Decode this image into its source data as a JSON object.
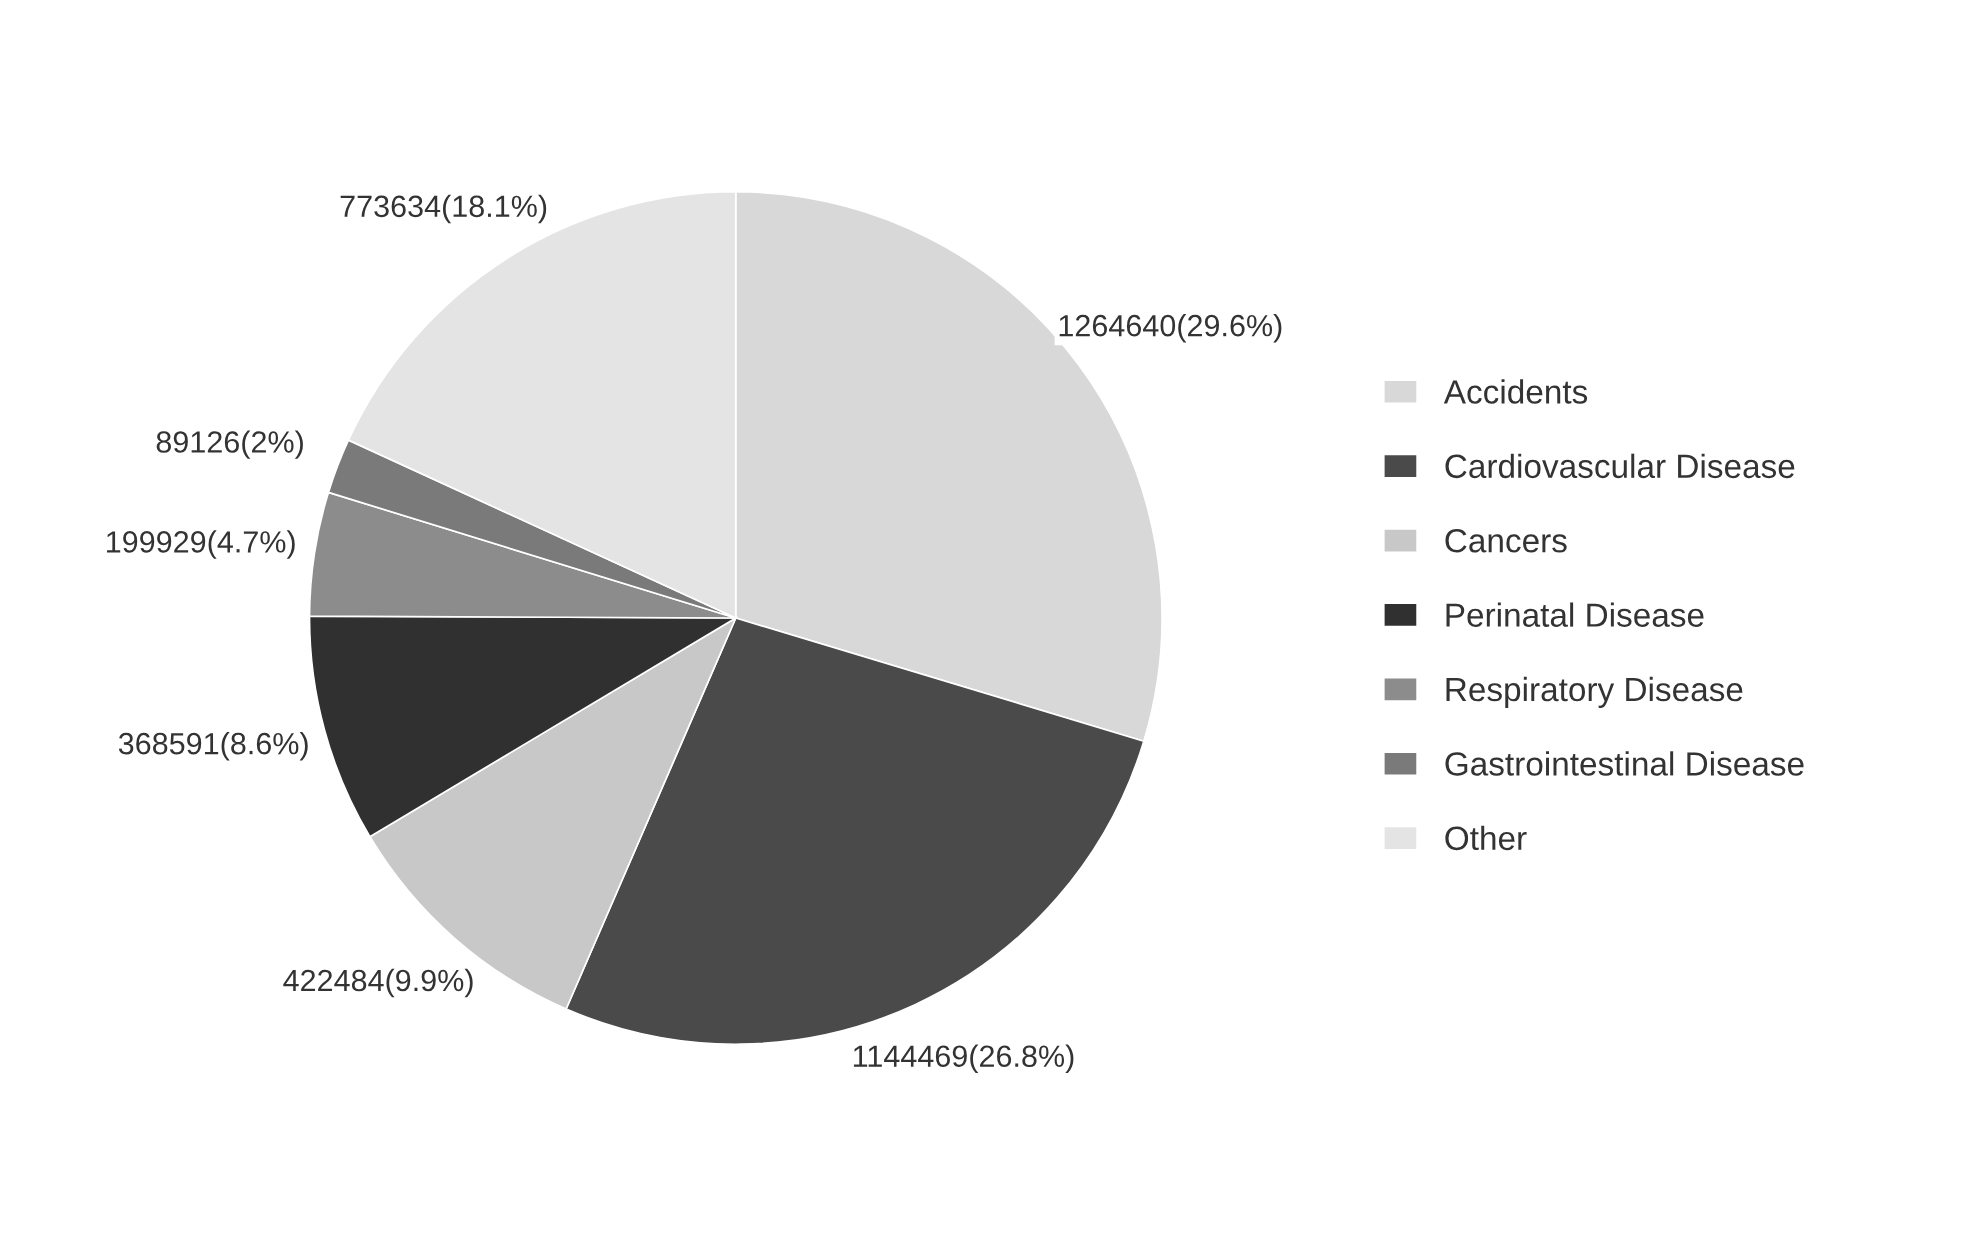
{
  "chart_data": {
    "type": "pie",
    "categories": [
      "Accidents",
      "Cardiovascular Disease",
      "Cancers",
      "Perinatal Disease",
      "Respiratory Disease",
      "Gastrointestinal Disease",
      "Other"
    ],
    "values": [
      1264640,
      1144469,
      422484,
      368591,
      199929,
      89126,
      773634
    ],
    "value_labels": [
      "1264640(29.6%)",
      "1144469(26.8%)",
      "422484(9.9%)",
      "368591(8.6%)",
      "199929(4.7%)",
      "89126(2%)",
      "773634(18.1%)"
    ],
    "colors": [
      "#d8d8d8",
      "#4a4a4a",
      "#c8c8c8",
      "#303030",
      "#8c8c8c",
      "#7a7a7a",
      "#e4e4e4"
    ],
    "legend": "right"
  }
}
